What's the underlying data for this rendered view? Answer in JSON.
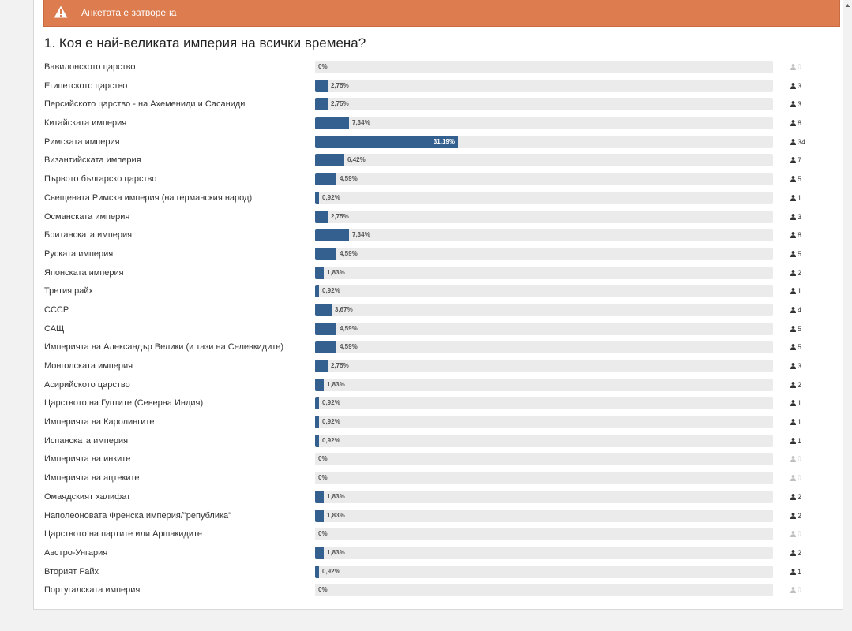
{
  "alert": {
    "text": "Анкетата е затворена",
    "icon": "warning-icon",
    "color": "#dc7c4f"
  },
  "question": {
    "title": "1. Коя е най-великата империя на всички времена?"
  },
  "options": [
    {
      "label": "Вавилонското царство",
      "percent_text": "0%",
      "percent": 0,
      "votes": 0
    },
    {
      "label": "Египетското царство",
      "percent_text": "2,75%",
      "percent": 2.75,
      "votes": 3
    },
    {
      "label": "Персийското царство - на Ахемениди и Сасаниди",
      "percent_text": "2,75%",
      "percent": 2.75,
      "votes": 3
    },
    {
      "label": "Китайската империя",
      "percent_text": "7,34%",
      "percent": 7.34,
      "votes": 8
    },
    {
      "label": "Римската империя",
      "percent_text": "31,19%",
      "percent": 31.19,
      "votes": 34
    },
    {
      "label": "Византийската империя",
      "percent_text": "6,42%",
      "percent": 6.42,
      "votes": 7
    },
    {
      "label": "Първото българско царство",
      "percent_text": "4,59%",
      "percent": 4.59,
      "votes": 5
    },
    {
      "label": "Свещената Римска империя (на германския народ)",
      "percent_text": "0,92%",
      "percent": 0.92,
      "votes": 1
    },
    {
      "label": "Османската империя",
      "percent_text": "2,75%",
      "percent": 2.75,
      "votes": 3
    },
    {
      "label": "Британската империя",
      "percent_text": "7,34%",
      "percent": 7.34,
      "votes": 8
    },
    {
      "label": "Руската империя",
      "percent_text": "4,59%",
      "percent": 4.59,
      "votes": 5
    },
    {
      "label": "Японската империя",
      "percent_text": "1,83%",
      "percent": 1.83,
      "votes": 2
    },
    {
      "label": "Третия райх",
      "percent_text": "0,92%",
      "percent": 0.92,
      "votes": 1
    },
    {
      "label": "СССР",
      "percent_text": "3,67%",
      "percent": 3.67,
      "votes": 4
    },
    {
      "label": "САЩ",
      "percent_text": "4,59%",
      "percent": 4.59,
      "votes": 5
    },
    {
      "label": "Империята на Александър Велики (и тази на Селевкидите)",
      "percent_text": "4,59%",
      "percent": 4.59,
      "votes": 5
    },
    {
      "label": "Монголската империя",
      "percent_text": "2,75%",
      "percent": 2.75,
      "votes": 3
    },
    {
      "label": "Асирийското царство",
      "percent_text": "1,83%",
      "percent": 1.83,
      "votes": 2
    },
    {
      "label": "Царството на Гуптите (Северна Индия)",
      "percent_text": "0,92%",
      "percent": 0.92,
      "votes": 1
    },
    {
      "label": "Империята на Каролингите",
      "percent_text": "0,92%",
      "percent": 0.92,
      "votes": 1
    },
    {
      "label": "Испанската империя",
      "percent_text": "0,92%",
      "percent": 0.92,
      "votes": 1
    },
    {
      "label": "Империята на инките",
      "percent_text": "0%",
      "percent": 0,
      "votes": 0
    },
    {
      "label": "Империята на ацтеките",
      "percent_text": "0%",
      "percent": 0,
      "votes": 0
    },
    {
      "label": "Омаядският халифат",
      "percent_text": "1,83%",
      "percent": 1.83,
      "votes": 2
    },
    {
      "label": "Наполеоновата Френска империя/\"република\"",
      "percent_text": "1,83%",
      "percent": 1.83,
      "votes": 2
    },
    {
      "label": "Царството на партите или Аршакидите",
      "percent_text": "0%",
      "percent": 0,
      "votes": 0
    },
    {
      "label": "Австро-Унгария",
      "percent_text": "1,83%",
      "percent": 1.83,
      "votes": 2
    },
    {
      "label": "Вторият Райх",
      "percent_text": "0,92%",
      "percent": 0.92,
      "votes": 1
    },
    {
      "label": "Португалската империя",
      "percent_text": "0%",
      "percent": 0,
      "votes": 0
    }
  ],
  "icons": {
    "votes": "user-icon"
  },
  "colors": {
    "bar": "#34608f",
    "track": "#ebebeb",
    "alert": "#dc7c4f"
  }
}
